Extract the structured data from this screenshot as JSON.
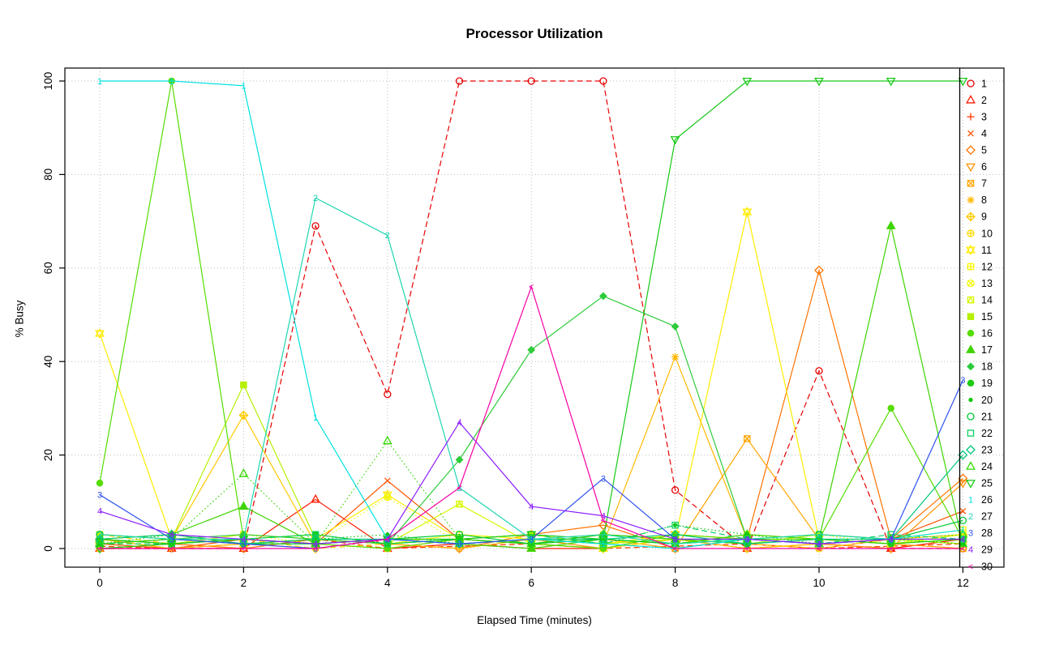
{
  "chart_data": {
    "type": "line",
    "title": "Processor Utilization",
    "xlabel": "Elapsed Time (minutes)",
    "ylabel": "% Busy",
    "x": [
      0,
      1,
      2,
      3,
      4,
      5,
      6,
      7,
      8,
      9,
      10,
      11,
      12
    ],
    "xticks": [
      0,
      2,
      4,
      6,
      8,
      10,
      12
    ],
    "yticks": [
      0,
      20,
      40,
      60,
      80,
      100
    ],
    "xlim": [
      0,
      12
    ],
    "ylim": [
      0,
      100
    ],
    "grid": true,
    "legend_position": "right",
    "series": [
      {
        "name": "1",
        "color": "#e60000",
        "pch": "circle",
        "lty": "dashed",
        "values": [
          0,
          0,
          0,
          69,
          33,
          100,
          100,
          100,
          12.5,
          0,
          38,
          0,
          0
        ]
      },
      {
        "name": "2",
        "color": "#ff1a00",
        "pch": "triangle",
        "lty": "solid",
        "values": [
          0,
          0,
          0,
          10.5,
          0,
          1,
          0,
          0,
          2,
          0,
          1,
          0,
          2
        ]
      },
      {
        "name": "3",
        "color": "#ff3800",
        "pch": "plus",
        "lty": "dashed",
        "values": [
          0.5,
          0,
          1,
          2,
          0,
          0.5,
          1,
          0,
          0.5,
          1,
          0,
          0.5,
          1
        ]
      },
      {
        "name": "4",
        "color": "#ff5500",
        "pch": "x",
        "lty": "solid",
        "values": [
          1,
          0,
          2,
          1,
          14.5,
          2,
          1,
          0,
          2,
          1,
          0,
          2,
          8
        ]
      },
      {
        "name": "5",
        "color": "#ff7300",
        "pch": "diamond",
        "lty": "solid",
        "values": [
          2,
          1,
          0,
          2,
          1,
          0,
          3,
          5,
          0,
          2,
          59.5,
          2,
          15
        ]
      },
      {
        "name": "6",
        "color": "#ff9100",
        "pch": "triangle-down",
        "lty": "solid",
        "values": [
          1,
          2,
          1,
          0,
          2,
          1,
          2,
          0,
          3,
          2,
          1,
          0,
          14
        ]
      },
      {
        "name": "7",
        "color": "#ffa500",
        "pch": "square-x",
        "lty": "solid",
        "values": [
          0,
          1,
          2,
          1,
          0,
          2,
          1,
          2,
          0,
          23.5,
          2,
          1,
          0
        ]
      },
      {
        "name": "8",
        "color": "#ffb800",
        "pch": "asterisk",
        "lty": "solid",
        "values": [
          2,
          0,
          1,
          2,
          1,
          0,
          2,
          1,
          41,
          2,
          1,
          2,
          1
        ]
      },
      {
        "name": "9",
        "color": "#ffc900",
        "pch": "diamond-plus",
        "lty": "solid",
        "values": [
          1,
          2,
          28.5,
          1,
          2,
          2,
          3,
          1,
          2,
          0,
          1,
          2,
          3
        ]
      },
      {
        "name": "10",
        "color": "#ffdb00",
        "pch": "circle-plus",
        "lty": "dashed",
        "values": [
          3,
          1,
          2,
          0,
          1,
          2,
          1,
          3,
          2,
          1,
          0,
          2,
          1
        ]
      },
      {
        "name": "11",
        "color": "#ffec00",
        "pch": "star",
        "lty": "solid",
        "values": [
          46,
          2,
          1,
          2,
          11.5,
          2,
          1,
          0,
          2,
          72,
          2,
          1,
          2
        ]
      },
      {
        "name": "12",
        "color": "#fcf800",
        "pch": "square-plus",
        "lty": "solid",
        "values": [
          2,
          3,
          1,
          2,
          1,
          3,
          2,
          1,
          3,
          2,
          1,
          2,
          4
        ]
      },
      {
        "name": "13",
        "color": "#effa00",
        "pch": "circle-x",
        "lty": "dotted",
        "values": [
          1,
          2,
          3,
          1,
          11,
          1,
          2,
          3,
          1,
          2,
          3,
          1,
          2
        ]
      },
      {
        "name": "14",
        "color": "#d8f700",
        "pch": "square-triangle",
        "lty": "solid",
        "values": [
          2,
          1,
          3,
          2,
          1,
          9.5,
          1,
          2,
          1,
          3,
          2,
          1,
          3
        ]
      },
      {
        "name": "15",
        "color": "#b6f000",
        "pch": "square-filled",
        "lty": "solid",
        "values": [
          3,
          2,
          35,
          2,
          1,
          2,
          3,
          1,
          2,
          1,
          3,
          2,
          1
        ]
      },
      {
        "name": "16",
        "color": "#55dd00",
        "pch": "circle-filled",
        "lty": "solid",
        "values": [
          14,
          100,
          2,
          1,
          0,
          2,
          1,
          0,
          3,
          2,
          2,
          30,
          2
        ]
      },
      {
        "name": "17",
        "color": "#3fd400",
        "pch": "triangle-filled",
        "lty": "solid",
        "values": [
          2,
          3,
          9,
          1,
          2,
          1,
          0,
          2,
          1,
          3,
          2,
          69,
          1
        ]
      },
      {
        "name": "18",
        "color": "#2ccc3a",
        "pch": "diamond-filled",
        "lty": "solid",
        "values": [
          1,
          2,
          3,
          2,
          1,
          19,
          42.5,
          54,
          47.5,
          2,
          1,
          2,
          2
        ]
      },
      {
        "name": "19",
        "color": "#1ecb14",
        "pch": "circle-filled",
        "lty": "solid",
        "values": [
          2,
          1,
          2,
          3,
          1,
          2,
          1,
          3,
          2,
          1,
          2,
          1,
          2
        ]
      },
      {
        "name": "20",
        "color": "#0cc80c",
        "pch": "dot",
        "lty": "dotted",
        "values": [
          1,
          3,
          1,
          2,
          3,
          1,
          2,
          1,
          5,
          3,
          1,
          2,
          1
        ]
      },
      {
        "name": "21",
        "color": "#00c835",
        "pch": "circle",
        "lty": "solid",
        "values": [
          3,
          2,
          1,
          1,
          2,
          3,
          1,
          2,
          1,
          2,
          3,
          2,
          6
        ]
      },
      {
        "name": "22",
        "color": "#0ad162",
        "pch": "square",
        "lty": "dashed",
        "values": [
          1,
          1,
          2,
          3,
          1,
          2,
          3,
          1,
          5,
          2,
          1,
          3,
          2
        ]
      },
      {
        "name": "23",
        "color": "#00c878",
        "pch": "diamond",
        "lty": "solid",
        "values": [
          2,
          3,
          1,
          2,
          2,
          1,
          2,
          2,
          3,
          1,
          2,
          2,
          20
        ]
      },
      {
        "name": "24",
        "color": "#31d800",
        "pch": "triangle",
        "lty": "dotted",
        "values": [
          1,
          2,
          16,
          1,
          23,
          2,
          1,
          3,
          2,
          2,
          1,
          2,
          3
        ]
      },
      {
        "name": "25",
        "color": "#17c917",
        "pch": "triangle-down",
        "lty": "solid",
        "values": [
          0,
          1,
          2,
          1,
          2,
          2,
          3,
          2,
          87.5,
          100,
          100,
          100,
          100
        ]
      },
      {
        "name": "26",
        "color": "#00e0e0",
        "pch": "char:1",
        "lty": "solid",
        "values": [
          100,
          100,
          99,
          28,
          2,
          1,
          2,
          1,
          0,
          2,
          1,
          2,
          4
        ]
      },
      {
        "name": "27",
        "color": "#1fd6b0",
        "pch": "char:2",
        "lty": "solid",
        "values": [
          3,
          2,
          2,
          75,
          67,
          13,
          2,
          3,
          1,
          2,
          3,
          2,
          2
        ]
      },
      {
        "name": "28",
        "color": "#2e51f0",
        "pch": "char:3",
        "lty": "solid",
        "values": [
          11.5,
          2,
          1,
          0,
          2,
          1,
          2,
          15,
          2,
          2,
          1,
          2,
          36
        ]
      },
      {
        "name": "29",
        "color": "#8c1aff",
        "pch": "char:4",
        "lty": "solid",
        "values": [
          8,
          3,
          2,
          1,
          2,
          27,
          9,
          7,
          2,
          2,
          1,
          2,
          2
        ]
      },
      {
        "name": "30",
        "color": "#f500a5",
        "pch": "char:<",
        "lty": "solid",
        "values": [
          0,
          0,
          0,
          0,
          2,
          13,
          56,
          6,
          0,
          0,
          0,
          0,
          0
        ]
      }
    ]
  }
}
